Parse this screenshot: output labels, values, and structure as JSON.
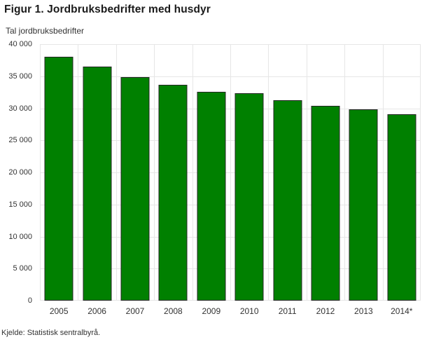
{
  "header": {
    "title": "Figur 1. Jordbruksbedrifter med husdyr"
  },
  "footer": {
    "source": "Kjelde: Statistisk sentralbyrå."
  },
  "chart_data": {
    "type": "bar",
    "title": "Figur 1. Jordbruksbedrifter med husdyr",
    "ylabel": "Tal jordbruksbedrifter",
    "xlabel": "",
    "categories": [
      "2005",
      "2006",
      "2007",
      "2008",
      "2009",
      "2010",
      "2011",
      "2012",
      "2013",
      "2014*"
    ],
    "values": [
      38000,
      36500,
      34900,
      33700,
      32600,
      32400,
      31300,
      30400,
      29800,
      29100
    ],
    "ylim": [
      0,
      40000
    ],
    "ytick_step": 5000,
    "ytick_labels": [
      "0",
      "5 000",
      "10 000",
      "15 000",
      "20 000",
      "25 000",
      "30 000",
      "35 000",
      "40 000"
    ],
    "grid": "on",
    "legend": "none",
    "bar_color": "#008000",
    "bar_border_color": "#262626",
    "grid_color": "#e6e6e6",
    "text_color": "#333333"
  }
}
